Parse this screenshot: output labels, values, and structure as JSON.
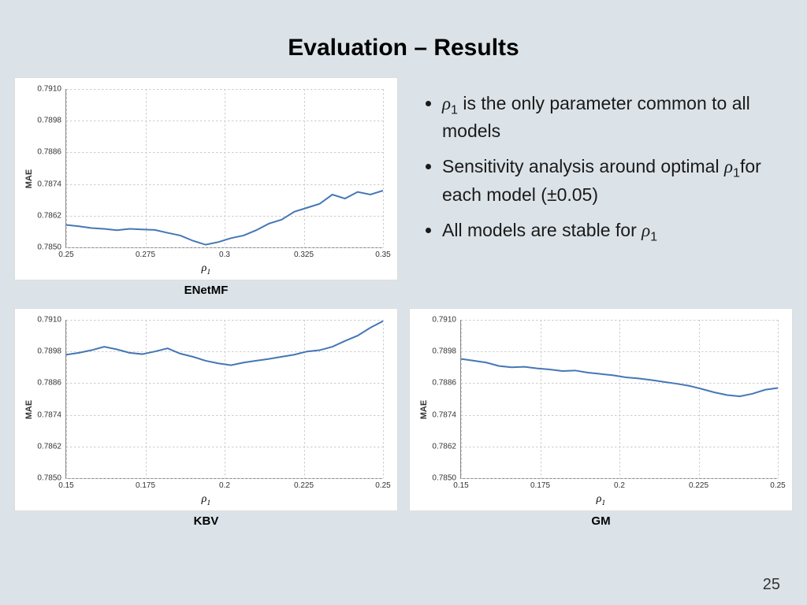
{
  "title": "Evaluation – Results",
  "page_number": "25",
  "bullets": [
    "ρ₁ is the only parameter common to all models",
    "Sensitivity analysis around optimal ρ₁ for each model (±0.05)",
    "All models are stable for ρ₁"
  ],
  "charts": {
    "common": {
      "ylabel": "MAE",
      "xlabel": "ρ₁",
      "yticks": [
        0.785,
        0.7862,
        0.7874,
        0.7886,
        0.7898,
        0.791
      ],
      "ylim": [
        0.785,
        0.791
      ],
      "line_color": "#4577b5",
      "grid_color": "#cccccc",
      "bg_color": "#ffffff",
      "axis_color": "#888888",
      "font_size_ticks": 10,
      "font_size_label": 11
    },
    "enetmf": {
      "label": "ENetMF",
      "xticks": [
        0.25,
        0.275,
        0.3,
        0.325,
        0.35
      ],
      "xlim": [
        0.25,
        0.35
      ],
      "values": [
        [
          0.25,
          0.78585
        ],
        [
          0.254,
          0.7858
        ],
        [
          0.258,
          0.78573
        ],
        [
          0.262,
          0.7857
        ],
        [
          0.266,
          0.78565
        ],
        [
          0.27,
          0.7857
        ],
        [
          0.274,
          0.78568
        ],
        [
          0.278,
          0.78566
        ],
        [
          0.282,
          0.78555
        ],
        [
          0.286,
          0.78545
        ],
        [
          0.29,
          0.78525
        ],
        [
          0.294,
          0.7851
        ],
        [
          0.298,
          0.7852
        ],
        [
          0.302,
          0.78535
        ],
        [
          0.306,
          0.78545
        ],
        [
          0.31,
          0.78565
        ],
        [
          0.314,
          0.7859
        ],
        [
          0.318,
          0.78605
        ],
        [
          0.322,
          0.78635
        ],
        [
          0.326,
          0.7865
        ],
        [
          0.33,
          0.78665
        ],
        [
          0.334,
          0.787
        ],
        [
          0.338,
          0.78685
        ],
        [
          0.342,
          0.7871
        ],
        [
          0.346,
          0.787
        ],
        [
          0.35,
          0.78715
        ]
      ]
    },
    "kbv": {
      "label": "KBV",
      "xticks": [
        0.15,
        0.175,
        0.2,
        0.225,
        0.25
      ],
      "xlim": [
        0.15,
        0.25
      ],
      "values": [
        [
          0.15,
          0.78968
        ],
        [
          0.154,
          0.78975
        ],
        [
          0.158,
          0.78985
        ],
        [
          0.162,
          0.78998
        ],
        [
          0.166,
          0.78988
        ],
        [
          0.17,
          0.78975
        ],
        [
          0.174,
          0.7897
        ],
        [
          0.178,
          0.7898
        ],
        [
          0.182,
          0.78992
        ],
        [
          0.186,
          0.78972
        ],
        [
          0.19,
          0.7896
        ],
        [
          0.194,
          0.78945
        ],
        [
          0.198,
          0.78935
        ],
        [
          0.202,
          0.78928
        ],
        [
          0.206,
          0.78938
        ],
        [
          0.21,
          0.78945
        ],
        [
          0.214,
          0.78952
        ],
        [
          0.218,
          0.7896
        ],
        [
          0.222,
          0.78968
        ],
        [
          0.226,
          0.7898
        ],
        [
          0.23,
          0.78985
        ],
        [
          0.234,
          0.78998
        ],
        [
          0.238,
          0.7902
        ],
        [
          0.242,
          0.7904
        ],
        [
          0.246,
          0.7907
        ],
        [
          0.25,
          0.79095
        ]
      ]
    },
    "gm": {
      "label": "GM",
      "xticks": [
        0.15,
        0.175,
        0.2,
        0.225,
        0.25
      ],
      "xlim": [
        0.15,
        0.25
      ],
      "values": [
        [
          0.15,
          0.78952
        ],
        [
          0.154,
          0.78945
        ],
        [
          0.158,
          0.78938
        ],
        [
          0.162,
          0.78925
        ],
        [
          0.166,
          0.7892
        ],
        [
          0.17,
          0.78922
        ],
        [
          0.174,
          0.78916
        ],
        [
          0.178,
          0.78912
        ],
        [
          0.182,
          0.78906
        ],
        [
          0.186,
          0.78908
        ],
        [
          0.19,
          0.789
        ],
        [
          0.194,
          0.78895
        ],
        [
          0.198,
          0.7889
        ],
        [
          0.202,
          0.78882
        ],
        [
          0.206,
          0.78878
        ],
        [
          0.21,
          0.78872
        ],
        [
          0.214,
          0.78865
        ],
        [
          0.218,
          0.78858
        ],
        [
          0.222,
          0.7885
        ],
        [
          0.226,
          0.78838
        ],
        [
          0.23,
          0.78825
        ],
        [
          0.234,
          0.78815
        ],
        [
          0.238,
          0.7881
        ],
        [
          0.242,
          0.7882
        ],
        [
          0.246,
          0.78835
        ],
        [
          0.25,
          0.78842
        ]
      ]
    }
  }
}
